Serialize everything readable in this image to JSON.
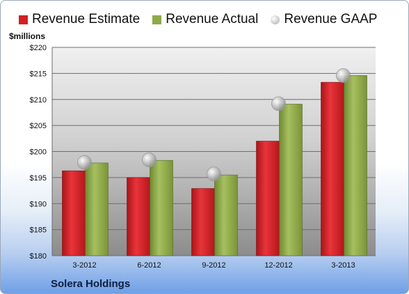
{
  "unit_label": "$millions",
  "company": "Solera Holdings",
  "chart_data": {
    "type": "bar",
    "categories": [
      "3-2012",
      "6-2012",
      "9-2012",
      "12-2012",
      "3-2013"
    ],
    "series": [
      {
        "name": "Revenue Estimate",
        "type": "bar",
        "color": "#d41f25",
        "values": [
          196.3,
          195.0,
          192.9,
          202.0,
          213.3
        ]
      },
      {
        "name": "Revenue Actual",
        "type": "bar",
        "color": "#8faa4a",
        "values": [
          197.8,
          198.3,
          195.5,
          209.1,
          214.6
        ]
      },
      {
        "name": "Revenue GAAP",
        "type": "scatter",
        "color": "#b8b8b8",
        "values": [
          197.9,
          198.4,
          195.7,
          209.2,
          214.6
        ]
      }
    ],
    "ylabel": "$millions",
    "ylim": [
      180,
      220
    ],
    "yticks": [
      "$180",
      "$185",
      "$190",
      "$195",
      "$200",
      "$205",
      "$210",
      "$215",
      "$220"
    ],
    "grid": true,
    "legend_position": "top"
  }
}
